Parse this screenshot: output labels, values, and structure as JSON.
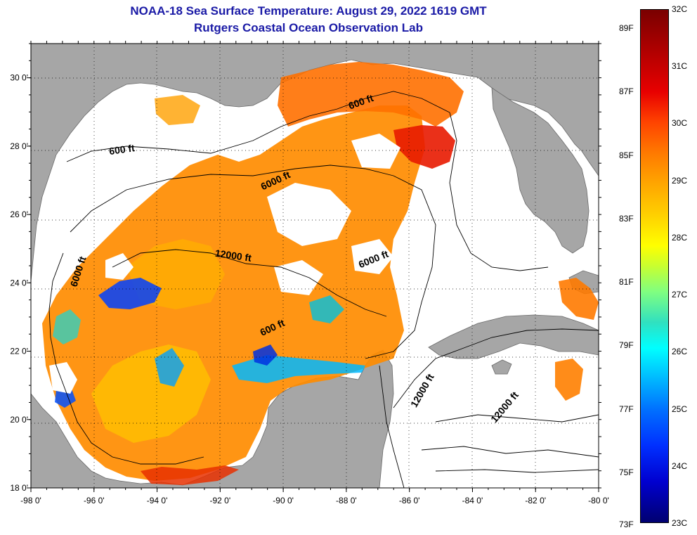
{
  "title": {
    "line1": "NOAA-18 Sea Surface Temperature:  August 29, 2022 1619 GMT",
    "line2": "Rutgers Coastal Ocean Observation Lab"
  },
  "axes": {
    "lon_ticks": [
      "-98 0'",
      "-96 0'",
      "-94 0'",
      "-92 0'",
      "-90 0'",
      "-88 0'",
      "-86 0'",
      "-84 0'",
      "-82 0'",
      "-80 0'"
    ],
    "lat_ticks": [
      "18 0'",
      "20 0'",
      "22 0'",
      "24 0'",
      "26 0'",
      "28 0'",
      "30 0'"
    ],
    "lon_range": [
      -98,
      -80
    ],
    "lat_range": [
      18,
      31
    ]
  },
  "contour_labels": [
    {
      "text": "600 ft",
      "lon": -95.1,
      "lat": 27.8
    },
    {
      "text": "600 ft",
      "lon": -87.5,
      "lat": 29.2
    },
    {
      "text": "6000 ft",
      "lon": -90.2,
      "lat": 26.9
    },
    {
      "text": "12000 ft",
      "lon": -91.6,
      "lat": 24.7
    },
    {
      "text": "6000 ft",
      "lon": -96.4,
      "lat": 24.3
    },
    {
      "text": "6000 ft",
      "lon": -87.1,
      "lat": 24.6
    },
    {
      "text": "600 ft",
      "lon": -90.3,
      "lat": 22.6
    },
    {
      "text": "12000 ft",
      "lon": -85.5,
      "lat": 20.8
    },
    {
      "text": "12000 ft",
      "lon": -82.9,
      "lat": 20.3
    }
  ],
  "colorbar": {
    "fahrenheit": [
      "89F",
      "87F",
      "85F",
      "83F",
      "81F",
      "79F",
      "77F",
      "75F",
      "73F"
    ],
    "celsius": [
      "32C",
      "31C",
      "30C",
      "29C",
      "28C",
      "27C",
      "26C",
      "25C",
      "24C",
      "23C"
    ],
    "range_c": [
      23,
      32
    ]
  },
  "colors": {
    "land": "#a6a6a6",
    "ocean_nodata": "#ffffff",
    "title": "#1a1aa6",
    "warm": "#ff8c00",
    "cool": "#0040ff"
  }
}
